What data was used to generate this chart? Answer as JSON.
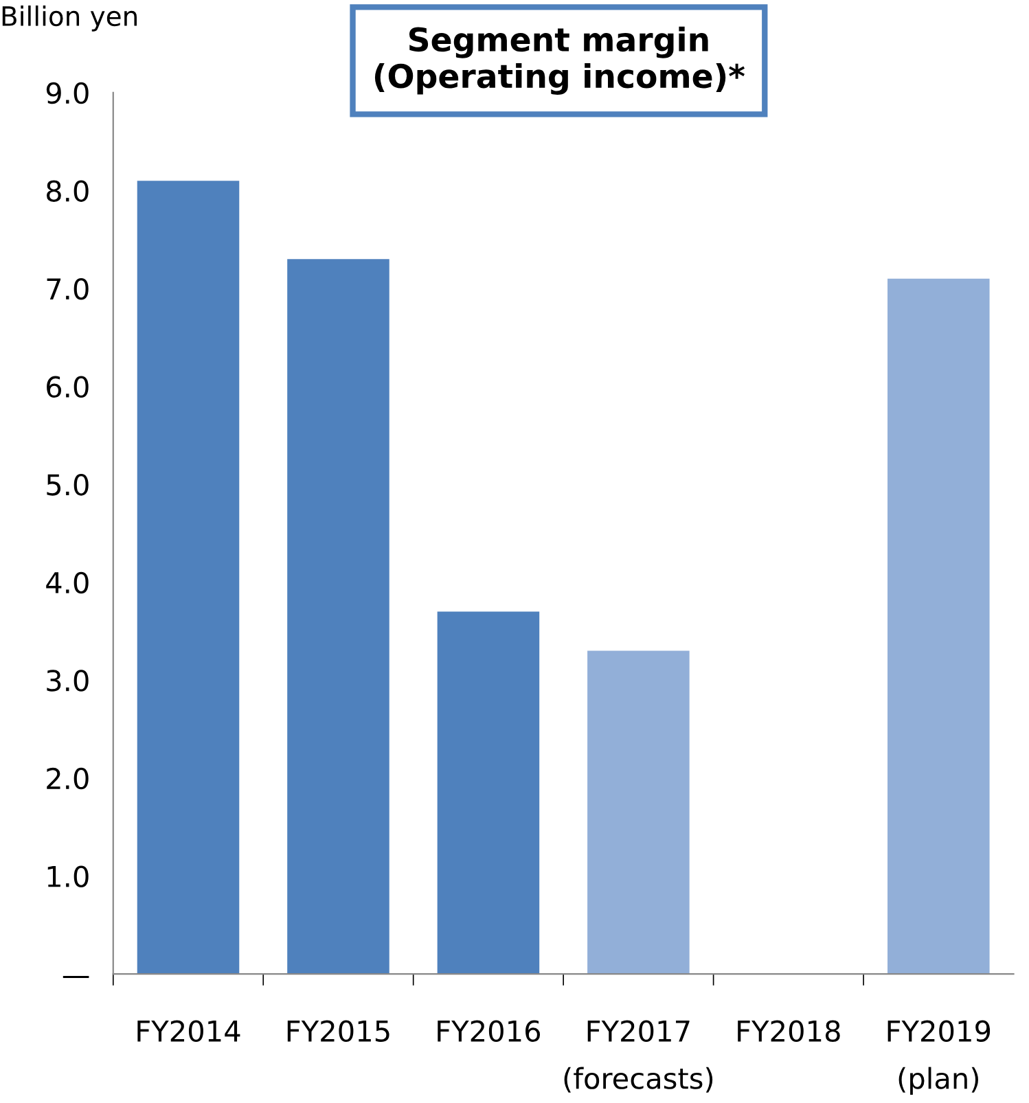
{
  "chart_data": {
    "type": "bar",
    "title": "Segment margin\n(Operating income)*",
    "ylabel": "Billion yen",
    "categories": [
      "FY2014",
      "FY2015",
      "FY2016",
      "FY2017\n(forecasts)",
      "FY2018",
      "FY2019\n(plan)"
    ],
    "values": [
      8.1,
      7.3,
      3.7,
      3.3,
      null,
      7.1
    ],
    "colors": [
      "#4f81bd",
      "#4f81bd",
      "#4f81bd",
      "#92afd8",
      "#92afd8",
      "#92afd8"
    ],
    "ylim": [
      0,
      9
    ],
    "yticks": [
      {
        "value": 0,
        "label": "—"
      },
      {
        "value": 1,
        "label": "1.0"
      },
      {
        "value": 2,
        "label": "2.0"
      },
      {
        "value": 3,
        "label": "3.0"
      },
      {
        "value": 4,
        "label": "4.0"
      },
      {
        "value": 5,
        "label": "5.0"
      },
      {
        "value": 6,
        "label": "6.0"
      },
      {
        "value": 7,
        "label": "7.0"
      },
      {
        "value": 8,
        "label": "8.0"
      },
      {
        "value": 9,
        "label": "9.0"
      }
    ],
    "grid": false
  }
}
